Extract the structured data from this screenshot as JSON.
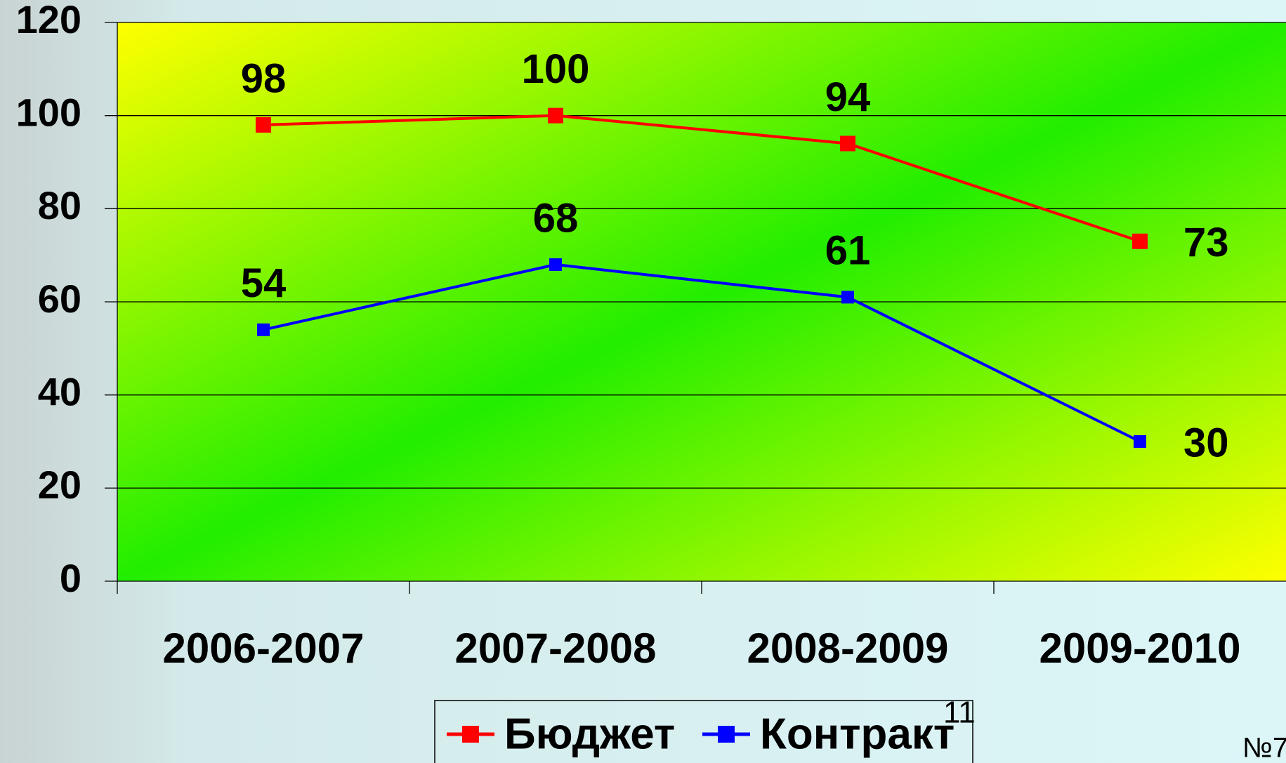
{
  "chart_data": {
    "type": "line",
    "categories": [
      "2006-2007",
      "2007-2008",
      "2008-2009",
      "2009-2010"
    ],
    "series": [
      {
        "name": "Бюджет",
        "color": "#ff0000",
        "values": [
          98,
          100,
          94,
          73
        ]
      },
      {
        "name": "Контракт",
        "color": "#0000ff",
        "values": [
          54,
          68,
          61,
          30
        ]
      }
    ],
    "ylim": [
      0,
      120
    ],
    "yticks": [
      0,
      20,
      40,
      60,
      80,
      100,
      120
    ],
    "grid": true,
    "legend": "bottom",
    "annotations": [
      "11",
      "№7"
    ]
  }
}
